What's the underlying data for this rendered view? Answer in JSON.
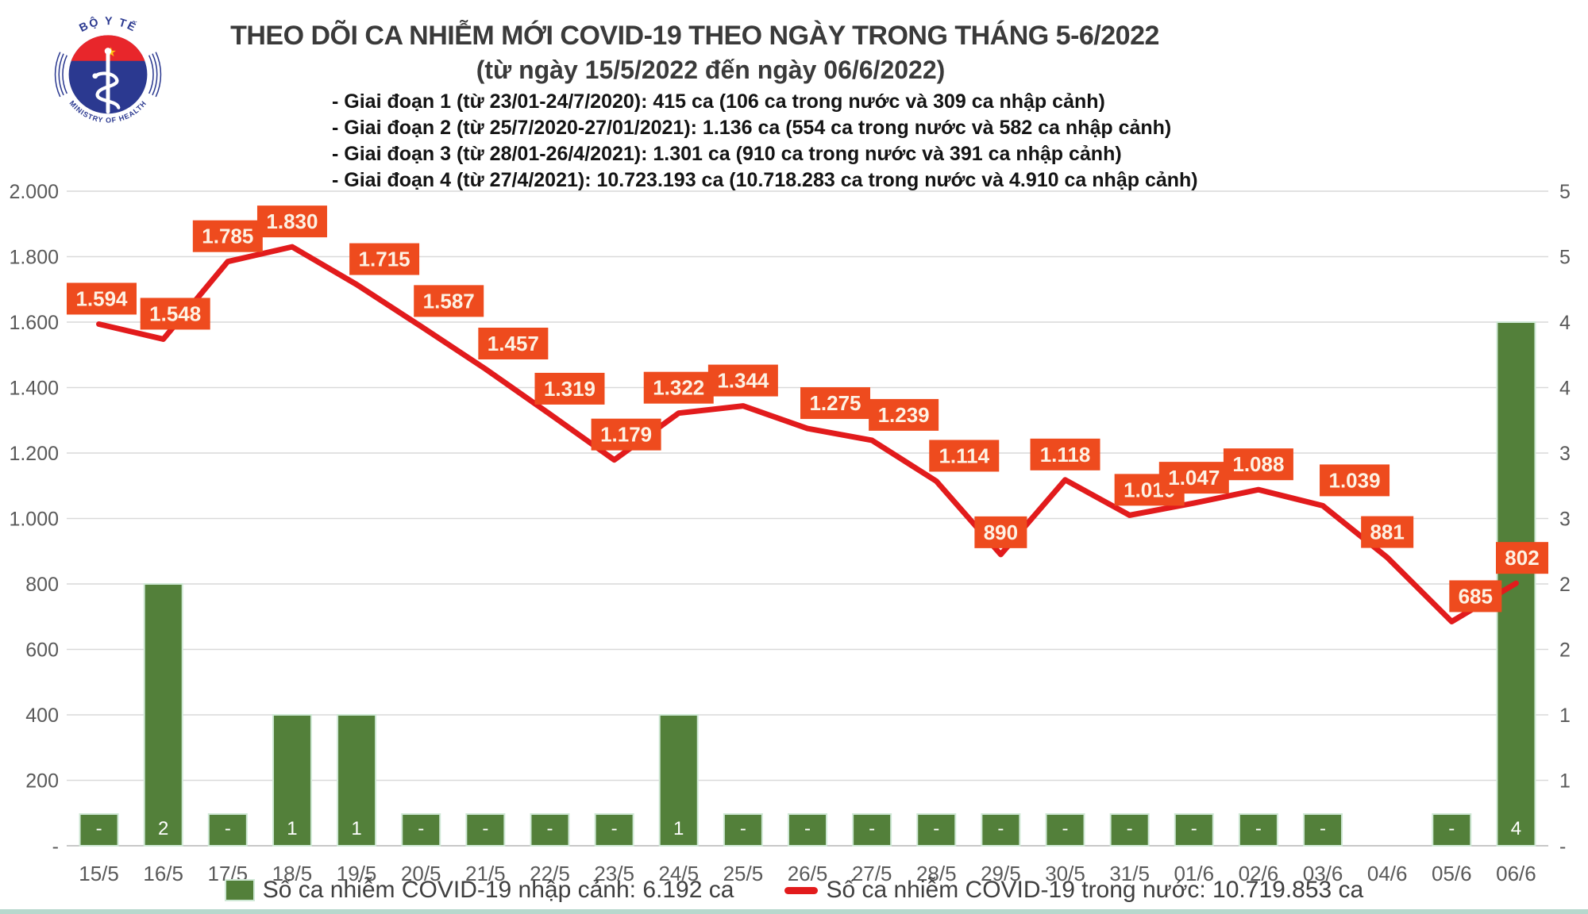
{
  "header": {
    "title": "THEO DÕI CA NHIỄM MỚI COVID-19 THEO NGÀY TRONG THÁNG 5-6/2022",
    "subtitle": "(từ ngày 15/5/2022 đến ngày 06/6/2022)",
    "phases": [
      "- Giai đoạn 1 (từ 23/01-24/7/2020): 415 ca (106 ca trong nước và 309 ca nhập cảnh)",
      "- Giai đoạn 2 (từ 25/7/2020-27/01/2021): 1.136 ca (554 ca trong nước và 582 ca nhập cảnh)",
      "- Giai đoạn 3 (từ 28/01-26/4/2021): 1.301 ca (910 ca trong nước và 391 ca nhập cảnh)",
      "- Giai đoạn 4 (từ 27/4/2021): 10.723.193 ca (10.718.283 ca trong nước và 4.910 ca nhập cảnh)"
    ]
  },
  "logo": {
    "top_text": "BỘ Y TẾ",
    "bottom_text": "MINISTRY OF HEALTH"
  },
  "legend": {
    "bar_label": "Số ca nhiễm COVID-19 nhập cảnh: 6.192 ca",
    "line_label": "Số ca nhiễm COVID-19 trong nước: 10.719.853 ca"
  },
  "chart_data": {
    "type": "combo bar+line",
    "categories": [
      "15/5",
      "16/5",
      "17/5",
      "18/5",
      "19/5",
      "20/5",
      "21/5",
      "22/5",
      "23/5",
      "24/5",
      "25/5",
      "26/5",
      "27/5",
      "28/5",
      "29/5",
      "30/5",
      "31/5",
      "01/6",
      "02/6",
      "03/6",
      "04/6",
      "05/6",
      "06/6"
    ],
    "series": [
      {
        "name": "Số ca nhiễm COVID-19 nhập cảnh",
        "type": "bar",
        "axis": "right",
        "values": [
          0,
          2,
          0,
          1,
          1,
          0,
          0,
          0,
          0,
          1,
          0,
          0,
          0,
          0,
          0,
          0,
          0,
          0,
          0,
          0,
          null,
          0,
          4
        ],
        "labels": [
          "-",
          "2",
          "-",
          "1",
          "1",
          "-",
          "-",
          "-",
          "-",
          "1",
          "-",
          "-",
          "-",
          "-",
          "-",
          "-",
          "-",
          "-",
          "-",
          "-",
          "",
          "-",
          "4"
        ]
      },
      {
        "name": "Số ca nhiễm COVID-19 trong nước",
        "type": "line",
        "axis": "left",
        "values": [
          1594,
          1548,
          1785,
          1830,
          1715,
          1587,
          1457,
          1319,
          1179,
          1322,
          1344,
          1275,
          1239,
          1114,
          890,
          1118,
          1010,
          1047,
          1088,
          1039,
          881,
          685,
          802
        ],
        "labels": [
          "1.594",
          "1.548",
          "1.785",
          "1.830",
          "1.715",
          "1.587",
          "1.457",
          "1.319",
          "1.179",
          "1.322",
          "1.344",
          "1.275",
          "1.239",
          "1.114",
          "890",
          "1.118",
          "1.010",
          "1.047",
          "1.088",
          "1.039",
          "881",
          "685",
          "802"
        ]
      }
    ],
    "left_axis": {
      "min": 0,
      "max": 2000,
      "step": 200,
      "tick_labels": [
        "2.000",
        "1.800",
        "1.600",
        "1.400",
        "1.200",
        "1.000",
        "800",
        "600",
        "400",
        "200",
        "-"
      ]
    },
    "right_axis": {
      "min": 0,
      "max": 5,
      "tick_labels": [
        "5",
        "5",
        "4",
        "4",
        "3",
        "3",
        "2",
        "2",
        "1",
        "1",
        "-"
      ]
    },
    "grid": true,
    "legend_position": "bottom"
  },
  "colors": {
    "bar_green": "#53803A",
    "bar_edge": "#cfe8d5",
    "line_red": "#E21B1C",
    "label_box_orange": "#EE4B1E",
    "label_text": "#FDF2E4",
    "axis_text": "#595959",
    "grid": "#D9D9D9",
    "baseline": "#c8c8c8",
    "title_text": "#3A3A3A",
    "bottom_strip": "#B7D8CD",
    "logo_navy": "#2B3990",
    "logo_red": "#E8262B",
    "star_gold": "#FFC20E"
  }
}
